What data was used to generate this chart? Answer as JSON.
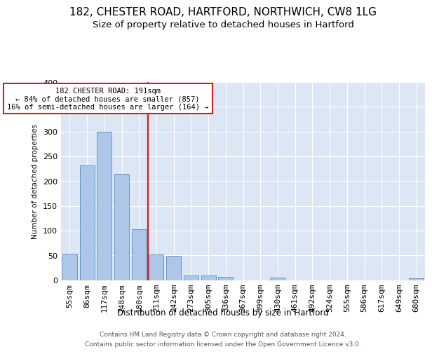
{
  "title1": "182, CHESTER ROAD, HARTFORD, NORTHWICH, CW8 1LG",
  "title2": "Size of property relative to detached houses in Hartford",
  "xlabel": "Distribution of detached houses by size in Hartford",
  "ylabel": "Number of detached properties",
  "categories": [
    "55sqm",
    "86sqm",
    "117sqm",
    "148sqm",
    "180sqm",
    "211sqm",
    "242sqm",
    "273sqm",
    "305sqm",
    "336sqm",
    "367sqm",
    "399sqm",
    "430sqm",
    "461sqm",
    "492sqm",
    "524sqm",
    "555sqm",
    "586sqm",
    "617sqm",
    "649sqm",
    "680sqm"
  ],
  "values": [
    53,
    232,
    300,
    215,
    103,
    52,
    49,
    9,
    9,
    6,
    0,
    0,
    5,
    0,
    0,
    0,
    0,
    0,
    0,
    0,
    3
  ],
  "bar_color": "#aec6e8",
  "bar_edgecolor": "#5b8ec4",
  "highlight_color": "#cc2222",
  "property_line_index": 4,
  "annotation_line1": "182 CHESTER ROAD: 191sqm",
  "annotation_line2": "← 84% of detached houses are smaller (857)",
  "annotation_line3": "16% of semi-detached houses are larger (164) →",
  "annotation_box_color": "#cc2222",
  "ylim": [
    0,
    400
  ],
  "yticks": [
    0,
    50,
    100,
    150,
    200,
    250,
    300,
    350,
    400
  ],
  "footer1": "Contains HM Land Registry data © Crown copyright and database right 2024.",
  "footer2": "Contains public sector information licensed under the Open Government Licence v3.0.",
  "plot_bg_color": "#dce6f5",
  "title1_fontsize": 11,
  "title2_fontsize": 9.5
}
